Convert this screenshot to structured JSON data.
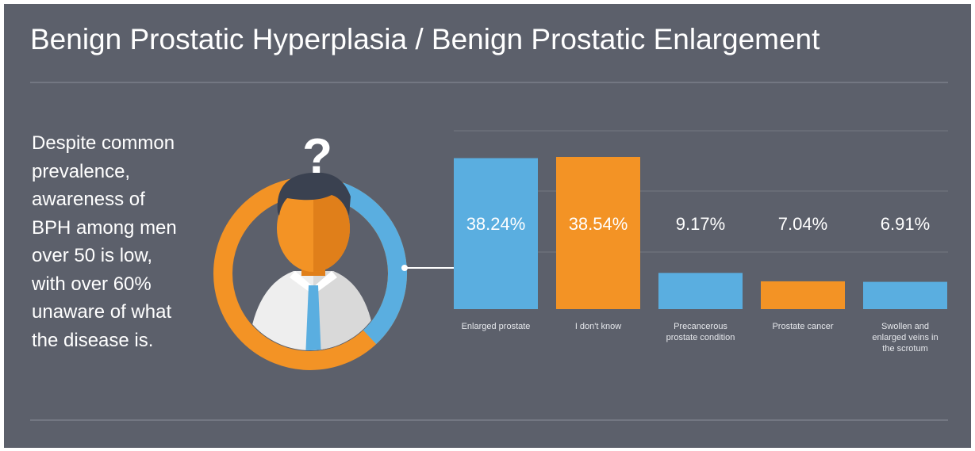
{
  "title": "Benign Prostatic Hyperplasia / Benign Prostatic Enlargement",
  "description": "Despite common prevalence, awareness of BPH among men over 50 is low, with over 60% unaware of what the disease is.",
  "icon_text": "?",
  "chart_data": {
    "type": "bar",
    "categories": [
      "Enlarged prostate",
      "I don't know",
      "Precancerous prostate condition",
      "Prostate cancer",
      "Swollen and enlarged veins in the scrotum"
    ],
    "values": [
      38.24,
      38.54,
      9.17,
      7.04,
      6.91
    ],
    "value_labels": [
      "38.24%",
      "38.54%",
      "9.17%",
      "7.04%",
      "6.91%"
    ],
    "colors": [
      "#5aaee0",
      "#f39325",
      "#5aaee0",
      "#f39325",
      "#5aaee0"
    ]
  }
}
